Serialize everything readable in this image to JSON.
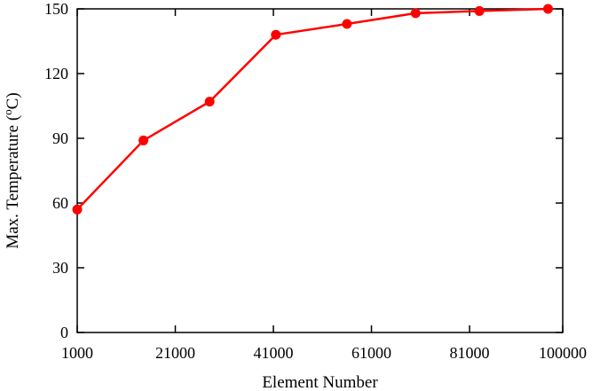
{
  "chart_data": {
    "type": "line",
    "xlabel": "Element Number",
    "ylabel": "Max. Temperature (oC)",
    "ylabel_parts": {
      "pre": "Max. Temperature (",
      "sup": "o",
      "post": "C)"
    },
    "xlim": [
      1000,
      100000
    ],
    "ylim": [
      0,
      150
    ],
    "xticks": [
      1000,
      21000,
      41000,
      61000,
      81000,
      100000
    ],
    "xtick_labels": [
      "1000",
      "21000",
      "41000",
      "61000",
      "81000",
      "100000"
    ],
    "yticks": [
      0,
      30,
      60,
      90,
      120,
      150
    ],
    "ytick_labels": [
      "0",
      "30",
      "60",
      "90",
      "120",
      "150"
    ],
    "grid": false,
    "series": [
      {
        "color": "#ff0000",
        "marker": "circle",
        "points": [
          {
            "x": 1000,
            "y": 57
          },
          {
            "x": 14500,
            "y": 89
          },
          {
            "x": 28000,
            "y": 107
          },
          {
            "x": 41500,
            "y": 138
          },
          {
            "x": 56000,
            "y": 143
          },
          {
            "x": 70000,
            "y": 148
          },
          {
            "x": 83000,
            "y": 149
          },
          {
            "x": 97000,
            "y": 150
          }
        ]
      }
    ]
  }
}
